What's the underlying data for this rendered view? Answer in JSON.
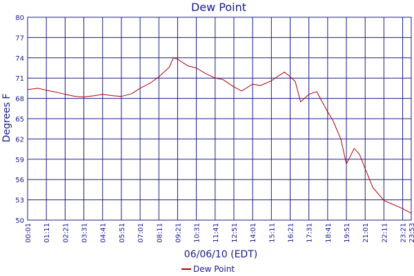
{
  "chart_data": {
    "type": "line",
    "title": "Dew Point",
    "xlabel": "06/06/10 (EDT)",
    "ylabel": "Degrees F",
    "ylim": [
      50,
      80
    ],
    "yticks": [
      50,
      53,
      56,
      59,
      62,
      65,
      68,
      71,
      74,
      77,
      80
    ],
    "x_ticks": [
      "00:01",
      "01:11",
      "02:21",
      "03:31",
      "04:41",
      "05:51",
      "07:01",
      "08:11",
      "09:21",
      "10:31",
      "11:41",
      "12:51",
      "14:01",
      "15:11",
      "16:21",
      "17:31",
      "18:41",
      "19:51",
      "21:01",
      "22:11",
      "23:21",
      "23:53"
    ],
    "grid": true,
    "legend_position": "bottom",
    "colors": {
      "line": "#aa0000",
      "grid": "#1a1a8c",
      "text": "#1a1a8c"
    },
    "series": [
      {
        "name": "Dew Point",
        "x": [
          "00:01",
          "00:40",
          "01:11",
          "01:50",
          "02:21",
          "03:00",
          "03:31",
          "04:10",
          "04:41",
          "05:20",
          "05:51",
          "06:30",
          "07:01",
          "07:40",
          "08:11",
          "08:50",
          "09:05",
          "09:21",
          "09:40",
          "10:00",
          "10:31",
          "11:00",
          "11:41",
          "12:10",
          "12:51",
          "13:20",
          "14:01",
          "14:30",
          "15:11",
          "15:40",
          "16:00",
          "16:21",
          "16:40",
          "17:00",
          "17:31",
          "18:00",
          "18:41",
          "19:00",
          "19:30",
          "19:51",
          "20:20",
          "20:40",
          "21:01",
          "21:30",
          "22:11",
          "22:40",
          "23:21",
          "23:53"
        ],
        "values": [
          69.3,
          69.5,
          69.2,
          68.9,
          68.6,
          68.3,
          68.2,
          68.4,
          68.6,
          68.4,
          68.3,
          68.7,
          69.5,
          70.3,
          71.2,
          72.6,
          74.0,
          73.8,
          73.3,
          72.8,
          72.5,
          71.8,
          71.0,
          70.8,
          69.7,
          69.1,
          70.1,
          69.9,
          70.6,
          71.4,
          71.9,
          71.2,
          70.5,
          67.5,
          68.6,
          69.0,
          66.0,
          64.8,
          62.0,
          58.3,
          60.6,
          59.7,
          57.6,
          54.8,
          52.9,
          52.4,
          51.7,
          51.0
        ]
      }
    ]
  }
}
